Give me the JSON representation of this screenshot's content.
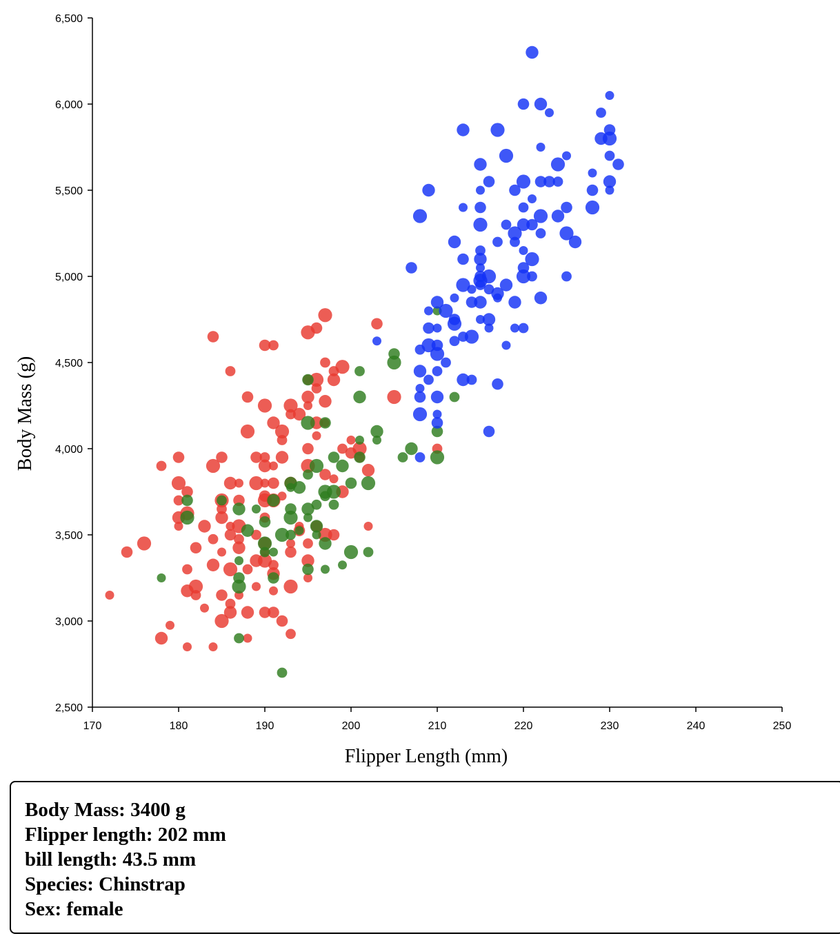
{
  "chart_data": {
    "type": "scatter",
    "title": "",
    "xlabel": "Flipper Length (mm)",
    "ylabel": "Body Mass (g)",
    "xlim": [
      170,
      250
    ],
    "ylim": [
      2500,
      6500
    ],
    "x_ticks": [
      "170",
      "180",
      "190",
      "200",
      "210",
      "220",
      "230",
      "240",
      "250"
    ],
    "y_ticks": [
      "2,500",
      "3,000",
      "3,500",
      "4,000",
      "4,500",
      "5,000",
      "5,500",
      "6,000",
      "6,500"
    ],
    "grid": false,
    "legend": "none",
    "series": [
      {
        "color": "#e8392f",
        "points": [
          [
            172,
            3150
          ],
          [
            174,
            3400
          ],
          [
            176,
            3450
          ],
          [
            178,
            3900
          ],
          [
            178,
            2900
          ],
          [
            179,
            2975
          ],
          [
            180,
            3950
          ],
          [
            180,
            3800
          ],
          [
            180,
            3700
          ],
          [
            180,
            3600
          ],
          [
            180,
            3550
          ],
          [
            181,
            3750
          ],
          [
            181,
            3625
          ],
          [
            181,
            3300
          ],
          [
            181,
            3175
          ],
          [
            181,
            2850
          ],
          [
            182,
            3425
          ],
          [
            182,
            3200
          ],
          [
            182,
            3150
          ],
          [
            183,
            3550
          ],
          [
            183,
            3075
          ],
          [
            184,
            4650
          ],
          [
            184,
            3900
          ],
          [
            184,
            3475
          ],
          [
            184,
            3325
          ],
          [
            184,
            2850
          ],
          [
            185,
            3950
          ],
          [
            185,
            3700
          ],
          [
            185,
            3650
          ],
          [
            185,
            3600
          ],
          [
            185,
            3400
          ],
          [
            185,
            3150
          ],
          [
            185,
            3000
          ],
          [
            186,
            4450
          ],
          [
            186,
            3800
          ],
          [
            186,
            3550
          ],
          [
            186,
            3500
          ],
          [
            186,
            3300
          ],
          [
            186,
            3100
          ],
          [
            186,
            3050
          ],
          [
            187,
            3800
          ],
          [
            187,
            3700
          ],
          [
            187,
            3550
          ],
          [
            187,
            3475
          ],
          [
            187,
            3425
          ],
          [
            187,
            3150
          ],
          [
            188,
            4300
          ],
          [
            188,
            4100
          ],
          [
            188,
            3300
          ],
          [
            188,
            3050
          ],
          [
            188,
            2900
          ],
          [
            189,
            3950
          ],
          [
            189,
            3800
          ],
          [
            189,
            3500
          ],
          [
            189,
            3350
          ],
          [
            189,
            3200
          ],
          [
            190,
            4600
          ],
          [
            190,
            4250
          ],
          [
            190,
            3950
          ],
          [
            190,
            3900
          ],
          [
            190,
            3800
          ],
          [
            190,
            3725
          ],
          [
            190,
            3700
          ],
          [
            190,
            3600
          ],
          [
            190,
            3450
          ],
          [
            190,
            3400
          ],
          [
            190,
            3050
          ],
          [
            190,
            3350
          ],
          [
            191,
            4600
          ],
          [
            191,
            4150
          ],
          [
            191,
            3900
          ],
          [
            191,
            3800
          ],
          [
            191,
            3700
          ],
          [
            191,
            3325
          ],
          [
            191,
            3275
          ],
          [
            191,
            3175
          ],
          [
            191,
            3050
          ],
          [
            192,
            4100
          ],
          [
            192,
            4050
          ],
          [
            192,
            3950
          ],
          [
            192,
            3725
          ],
          [
            192,
            3000
          ],
          [
            193,
            4250
          ],
          [
            193,
            4200
          ],
          [
            193,
            3800
          ],
          [
            193,
            3450
          ],
          [
            193,
            3400
          ],
          [
            193,
            3200
          ],
          [
            193,
            2925
          ],
          [
            194,
            4200
          ],
          [
            194,
            3550
          ],
          [
            194,
            3525
          ],
          [
            195,
            4675
          ],
          [
            195,
            4400
          ],
          [
            195,
            4300
          ],
          [
            195,
            4250
          ],
          [
            195,
            4000
          ],
          [
            195,
            3900
          ],
          [
            195,
            3450
          ],
          [
            195,
            3350
          ],
          [
            195,
            3250
          ],
          [
            196,
            4700
          ],
          [
            196,
            4400
          ],
          [
            196,
            4350
          ],
          [
            196,
            4150
          ],
          [
            196,
            4075
          ],
          [
            196,
            3550
          ],
          [
            197,
            4775
          ],
          [
            197,
            4500
          ],
          [
            197,
            4275
          ],
          [
            197,
            4150
          ],
          [
            197,
            3850
          ],
          [
            197,
            3500
          ],
          [
            198,
            4450
          ],
          [
            198,
            4400
          ],
          [
            198,
            3825
          ],
          [
            198,
            3500
          ],
          [
            199,
            4475
          ],
          [
            199,
            4000
          ],
          [
            199,
            3750
          ],
          [
            200,
            4050
          ],
          [
            200,
            3975
          ],
          [
            201,
            4000
          ],
          [
            201,
            3950
          ],
          [
            202,
            3875
          ],
          [
            202,
            3550
          ],
          [
            203,
            4725
          ],
          [
            205,
            4300
          ],
          [
            210,
            4000
          ]
        ]
      },
      {
        "color": "#2e7d1e",
        "points": [
          [
            178,
            3250
          ],
          [
            181,
            3700
          ],
          [
            181,
            3600
          ],
          [
            185,
            3700
          ],
          [
            187,
            3650
          ],
          [
            187,
            3350
          ],
          [
            187,
            3250
          ],
          [
            187,
            3200
          ],
          [
            187,
            2900
          ],
          [
            188,
            3525
          ],
          [
            189,
            3650
          ],
          [
            190,
            3575
          ],
          [
            190,
            3450
          ],
          [
            190,
            3400
          ],
          [
            191,
            3700
          ],
          [
            191,
            3400
          ],
          [
            191,
            3250
          ],
          [
            192,
            3500
          ],
          [
            192,
            2700
          ],
          [
            193,
            3800
          ],
          [
            193,
            3775
          ],
          [
            193,
            3650
          ],
          [
            193,
            3600
          ],
          [
            193,
            3500
          ],
          [
            194,
            3775
          ],
          [
            194,
            3525
          ],
          [
            195,
            4400
          ],
          [
            195,
            4150
          ],
          [
            195,
            3850
          ],
          [
            195,
            3650
          ],
          [
            195,
            3600
          ],
          [
            195,
            3300
          ],
          [
            196,
            3900
          ],
          [
            196,
            3675
          ],
          [
            196,
            3550
          ],
          [
            196,
            3500
          ],
          [
            197,
            4150
          ],
          [
            197,
            3750
          ],
          [
            197,
            3725
          ],
          [
            197,
            3450
          ],
          [
            197,
            3300
          ],
          [
            198,
            3950
          ],
          [
            198,
            3750
          ],
          [
            198,
            3675
          ],
          [
            199,
            3900
          ],
          [
            199,
            3325
          ],
          [
            200,
            3800
          ],
          [
            200,
            3400
          ],
          [
            201,
            4450
          ],
          [
            201,
            4300
          ],
          [
            201,
            4050
          ],
          [
            201,
            3950
          ],
          [
            202,
            3800
          ],
          [
            202,
            3400
          ],
          [
            203,
            4100
          ],
          [
            203,
            4050
          ],
          [
            205,
            4550
          ],
          [
            205,
            4500
          ],
          [
            206,
            3950
          ],
          [
            207,
            4000
          ],
          [
            210,
            4800
          ],
          [
            210,
            4100
          ],
          [
            210,
            3950
          ],
          [
            212,
            4300
          ]
        ]
      },
      {
        "color": "#1432f5",
        "points": [
          [
            203,
            4625
          ],
          [
            207,
            5050
          ],
          [
            208,
            5350
          ],
          [
            208,
            4575
          ],
          [
            208,
            4450
          ],
          [
            208,
            4350
          ],
          [
            208,
            4300
          ],
          [
            208,
            4200
          ],
          [
            208,
            3950
          ],
          [
            209,
            5500
          ],
          [
            209,
            4800
          ],
          [
            209,
            4700
          ],
          [
            209,
            4600
          ],
          [
            209,
            4400
          ],
          [
            210,
            4850
          ],
          [
            210,
            4700
          ],
          [
            210,
            4600
          ],
          [
            210,
            4550
          ],
          [
            210,
            4450
          ],
          [
            210,
            4300
          ],
          [
            210,
            4200
          ],
          [
            210,
            4150
          ],
          [
            211,
            4800
          ],
          [
            211,
            4500
          ],
          [
            212,
            5200
          ],
          [
            212,
            4875
          ],
          [
            212,
            4750
          ],
          [
            212,
            4725
          ],
          [
            212,
            4625
          ],
          [
            213,
            5850
          ],
          [
            213,
            5400
          ],
          [
            213,
            5100
          ],
          [
            213,
            4950
          ],
          [
            213,
            4650
          ],
          [
            213,
            4400
          ],
          [
            214,
            4925
          ],
          [
            214,
            4850
          ],
          [
            214,
            4650
          ],
          [
            214,
            4400
          ],
          [
            215,
            5650
          ],
          [
            215,
            5500
          ],
          [
            215,
            5400
          ],
          [
            215,
            5300
          ],
          [
            215,
            5150
          ],
          [
            215,
            5100
          ],
          [
            215,
            5050
          ],
          [
            215,
            5000
          ],
          [
            215,
            4975
          ],
          [
            215,
            4950
          ],
          [
            215,
            4850
          ],
          [
            215,
            4750
          ],
          [
            216,
            5550
          ],
          [
            216,
            5000
          ],
          [
            216,
            4925
          ],
          [
            216,
            4750
          ],
          [
            216,
            4700
          ],
          [
            216,
            4100
          ],
          [
            217,
            5850
          ],
          [
            217,
            5200
          ],
          [
            217,
            4900
          ],
          [
            217,
            4875
          ],
          [
            217,
            4375
          ],
          [
            218,
            5700
          ],
          [
            218,
            5300
          ],
          [
            218,
            4950
          ],
          [
            218,
            4600
          ],
          [
            219,
            5500
          ],
          [
            219,
            5250
          ],
          [
            219,
            5200
          ],
          [
            219,
            4850
          ],
          [
            219,
            4700
          ],
          [
            220,
            6000
          ],
          [
            220,
            5550
          ],
          [
            220,
            5400
          ],
          [
            220,
            5300
          ],
          [
            220,
            5150
          ],
          [
            220,
            5050
          ],
          [
            220,
            5000
          ],
          [
            220,
            4700
          ],
          [
            221,
            6300
          ],
          [
            221,
            5450
          ],
          [
            221,
            5300
          ],
          [
            221,
            5100
          ],
          [
            221,
            5000
          ],
          [
            222,
            6000
          ],
          [
            222,
            5750
          ],
          [
            222,
            5550
          ],
          [
            222,
            5350
          ],
          [
            222,
            5250
          ],
          [
            222,
            4875
          ],
          [
            223,
            5950
          ],
          [
            223,
            5550
          ],
          [
            224,
            5650
          ],
          [
            224,
            5550
          ],
          [
            224,
            5350
          ],
          [
            225,
            5700
          ],
          [
            225,
            5400
          ],
          [
            225,
            5250
          ],
          [
            225,
            5000
          ],
          [
            226,
            5200
          ],
          [
            228,
            5600
          ],
          [
            228,
            5500
          ],
          [
            228,
            5400
          ],
          [
            229,
            5950
          ],
          [
            229,
            5800
          ],
          [
            230,
            6050
          ],
          [
            230,
            5850
          ],
          [
            230,
            5800
          ],
          [
            230,
            5700
          ],
          [
            230,
            5550
          ],
          [
            230,
            5500
          ],
          [
            231,
            5650
          ]
        ]
      }
    ]
  },
  "tooltip": {
    "body_mass": "Body Mass: 3400 g",
    "flipper_length": "Flipper length: 202 mm",
    "bill_length": "bill length: 43.5 mm",
    "species": "Species: Chinstrap",
    "sex": "Sex: female"
  }
}
